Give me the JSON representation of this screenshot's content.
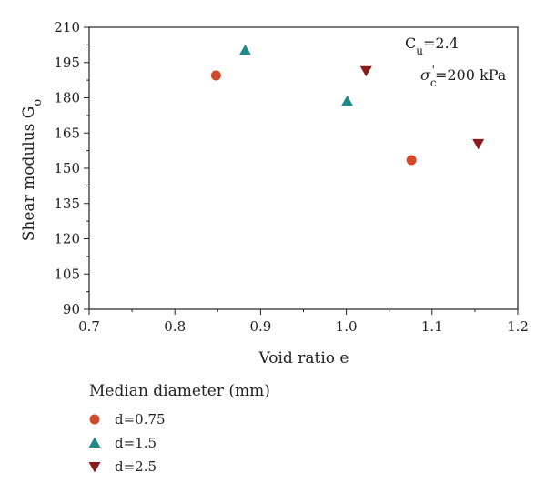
{
  "chart_data": {
    "type": "scatter",
    "title": "",
    "xlabel": "Void ratio e",
    "ylabel": "Shear modulus G",
    "ylabel_sub": "o",
    "xlim": [
      0.7,
      1.2
    ],
    "ylim": [
      90,
      210
    ],
    "x_ticks": [
      0.7,
      0.8,
      0.9,
      1.0,
      1.1,
      1.2
    ],
    "x_tick_labels": [
      "0.7",
      "0.8",
      "0.9",
      "1.0",
      "1.1",
      "1.2"
    ],
    "y_ticks": [
      90,
      105,
      120,
      135,
      150,
      165,
      180,
      195,
      210
    ],
    "y_tick_labels": [
      "90",
      "105",
      "120",
      "135",
      "150",
      "165",
      "180",
      "195",
      "210"
    ],
    "grid": false,
    "legend_title": "Median diameter (mm)",
    "legend_placement": "below",
    "annotations": {
      "cu_base": "C",
      "cu_sub": "u",
      "cu_value": "=2.4",
      "sigma_base": "σ",
      "sigma_sub": "c",
      "sigma_sup": "'",
      "sigma_value": "=200 kPa"
    },
    "series": [
      {
        "name": "d=0.75",
        "marker": "circle",
        "color": "#d04a2a",
        "points": [
          {
            "x": 0.848,
            "y": 189.5
          },
          {
            "x": 1.076,
            "y": 153.5
          }
        ]
      },
      {
        "name": "d=1.5",
        "marker": "triangle-up",
        "color": "#1f8a8a",
        "points": [
          {
            "x": 0.882,
            "y": 200.2
          },
          {
            "x": 1.001,
            "y": 178.5
          }
        ]
      },
      {
        "name": "d=2.5",
        "marker": "triangle-down",
        "color": "#8b1a1a",
        "points": [
          {
            "x": 1.023,
            "y": 191.5
          },
          {
            "x": 1.154,
            "y": 160.5
          }
        ]
      }
    ]
  }
}
